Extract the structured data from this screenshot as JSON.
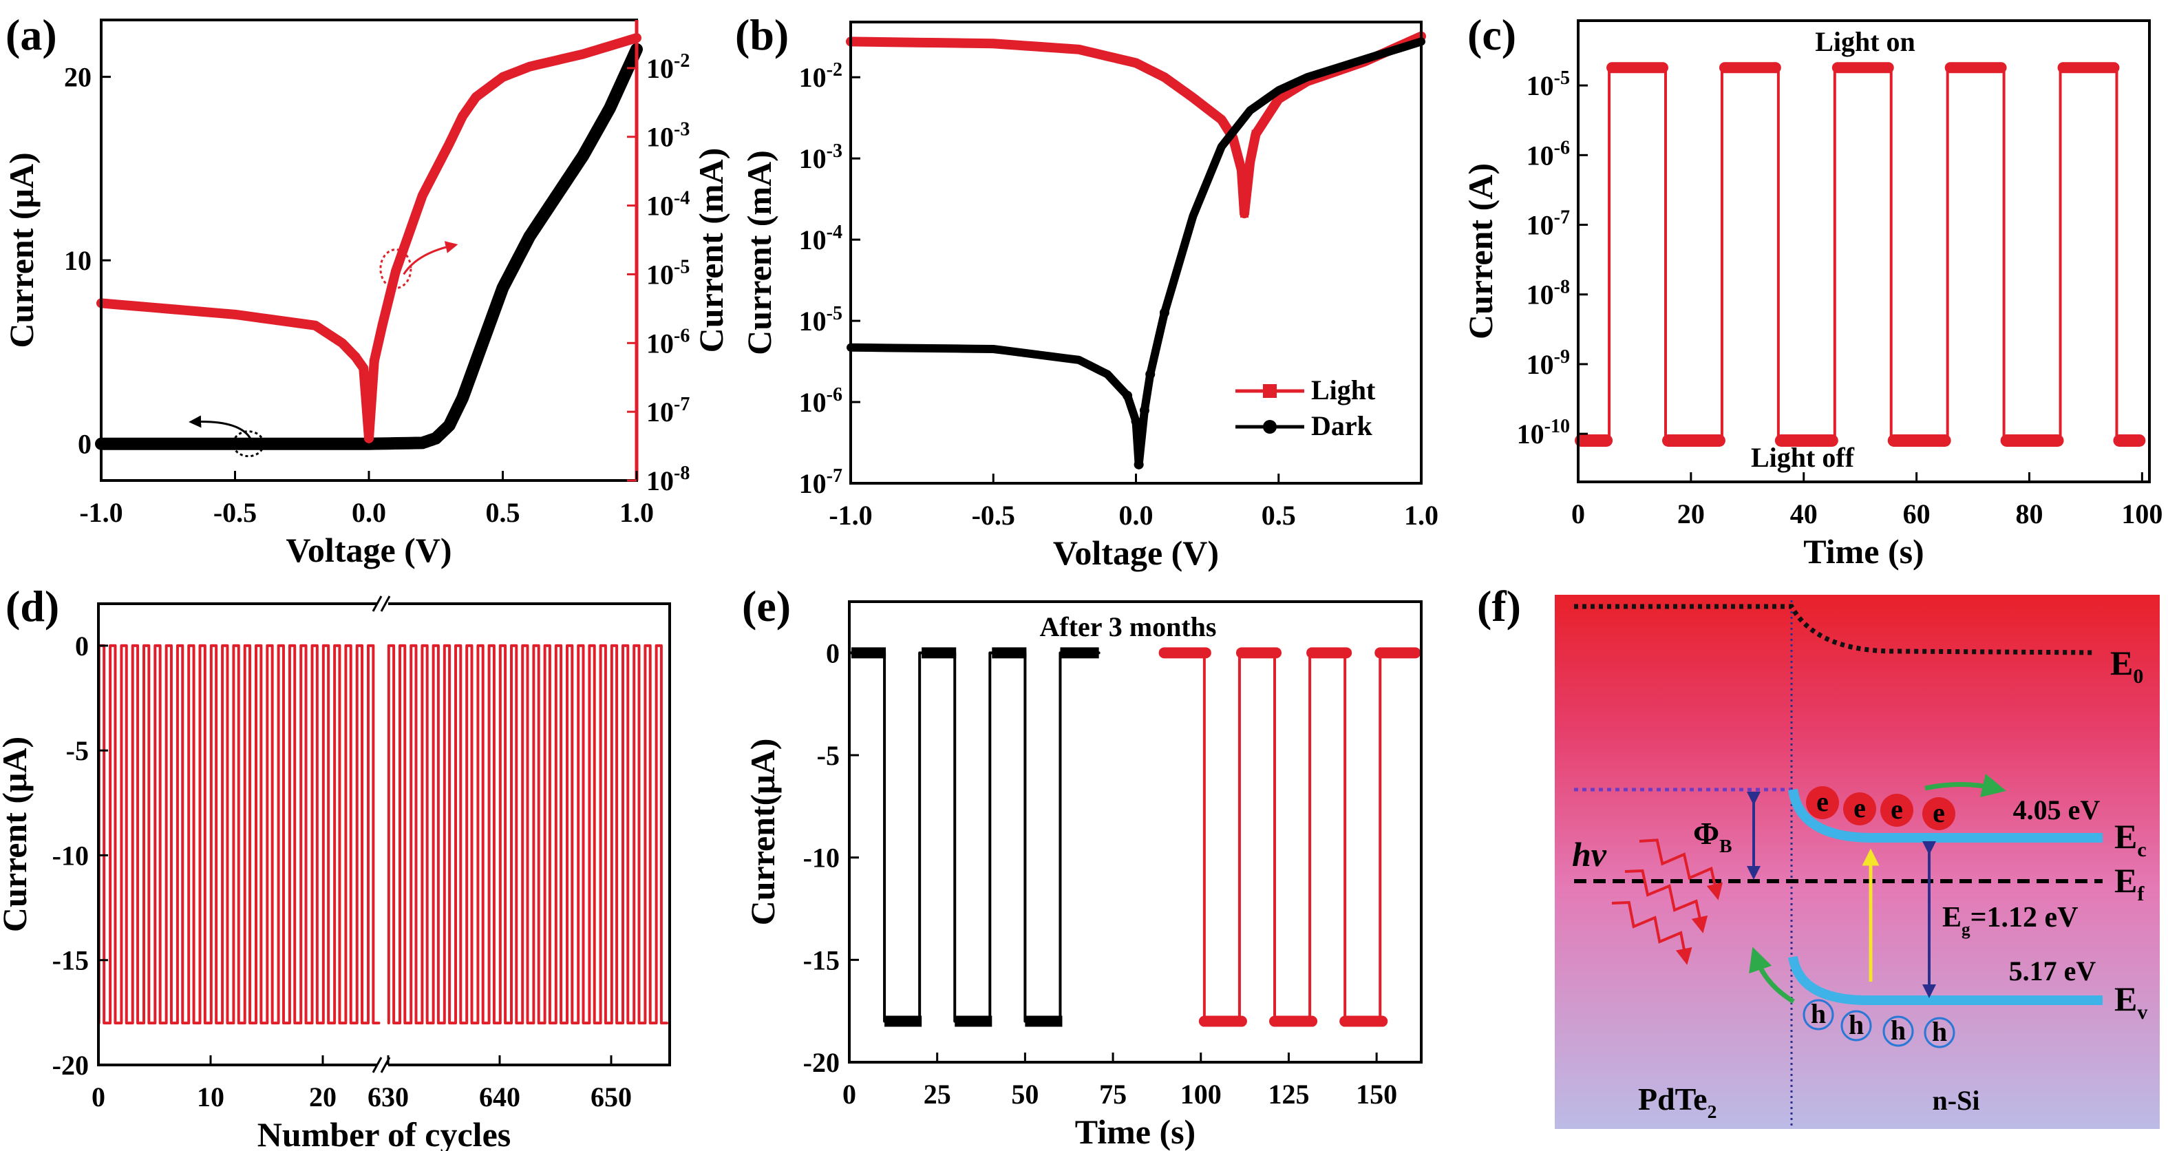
{
  "colors": {
    "light": "#e11f2b",
    "dark": "#000000",
    "ev_band": "#3fb3e8",
    "electron": "#e11f2b",
    "arrow_green": "#2eaa4a",
    "arrow_yellow": "#f4e42a",
    "arrow_navy": "#2a2f8e"
  },
  "panel_labels": [
    "(a)",
    "(b)",
    "(c)",
    "(d)",
    "(e)",
    "(f)"
  ],
  "chart_data": [
    {
      "id": "a",
      "type": "line",
      "xlabel": "Voltage (V)",
      "ylabel": "Current (μA)",
      "ylabel_right": "Current (mA)",
      "xlim": [
        -1.0,
        1.0
      ],
      "ylim": [
        -2,
        23.1
      ],
      "ylim_right_log10": [
        -8,
        -1.3
      ],
      "y_right_scale": "log",
      "xticks": [
        -1.0,
        -0.5,
        0.0,
        0.5,
        1.0
      ],
      "xtick_labels": [
        "-1.0",
        "-0.5",
        "0.0",
        "0.5",
        "1.0"
      ],
      "yticks": [
        0,
        10,
        20
      ],
      "ytick_labels": [
        "0",
        "10",
        "20"
      ],
      "yticks_right": [
        1e-08,
        1e-07,
        1e-06,
        1e-05,
        0.0001,
        0.001,
        0.01
      ],
      "ytick_right_labels": [
        "10^-8",
        "10^-7",
        "10^-6",
        "10^-5",
        "10^-4",
        "10^-3",
        "10^-2"
      ],
      "grid": false,
      "series": [
        {
          "axis": "left",
          "color": "#000000",
          "x": [
            -1.0,
            -0.5,
            0.0,
            0.2,
            0.25,
            0.3,
            0.35,
            0.4,
            0.45,
            0.5,
            0.6,
            0.7,
            0.8,
            0.9,
            1.0
          ],
          "y": [
            0,
            0,
            0,
            0.05,
            0.3,
            1.0,
            2.5,
            4.5,
            6.5,
            8.5,
            11.3,
            13.5,
            15.7,
            18.3,
            21.5
          ]
        },
        {
          "axis": "right",
          "color": "#e11f2b",
          "x": [
            -1.0,
            -0.5,
            -0.2,
            -0.1,
            -0.05,
            -0.02,
            0.0,
            0.02,
            0.05,
            0.1,
            0.2,
            0.3,
            0.35,
            0.4,
            0.5,
            0.6,
            0.8,
            1.0
          ],
          "y": [
            3.8e-06,
            2.6e-06,
            1.8e-06,
            1e-06,
            6.3e-07,
            4.3e-07,
            4.1e-08,
            5.5e-07,
            1.8e-06,
            1.1e-05,
            0.00014,
            0.00079,
            0.002,
            0.0038,
            0.0074,
            0.0105,
            0.016,
            0.0275
          ]
        }
      ]
    },
    {
      "id": "b",
      "type": "line",
      "xlabel": "Voltage (V)",
      "ylabel": "Current (mA)",
      "y_scale": "log",
      "xlim": [
        -1.0,
        1.0
      ],
      "ylim_log10": [
        -7,
        -1.32
      ],
      "xticks": [
        -1.0,
        -0.5,
        0.0,
        0.5,
        1.0
      ],
      "xtick_labels": [
        "-1.0",
        "-0.5",
        "0.0",
        "0.5",
        "1.0"
      ],
      "yticks": [
        1e-07,
        1e-06,
        1e-05,
        0.0001,
        0.001,
        0.01
      ],
      "ytick_labels": [
        "10^-7",
        "10^-6",
        "10^-5",
        "10^-4",
        "10^-3",
        "10^-2"
      ],
      "legend_position": "bottom-right",
      "series": [
        {
          "name": "Light",
          "color": "#e11f2b",
          "marker": "square",
          "x": [
            -1.0,
            -0.5,
            -0.2,
            0.0,
            0.1,
            0.2,
            0.3,
            0.34,
            0.37,
            0.38,
            0.4,
            0.42,
            0.5,
            0.6,
            0.8,
            1.0
          ],
          "y": [
            0.0275,
            0.026,
            0.022,
            0.015,
            0.01,
            0.0056,
            0.003,
            0.0018,
            0.00072,
            0.00021,
            0.00091,
            0.002,
            0.0054,
            0.0089,
            0.0155,
            0.032
          ]
        },
        {
          "name": "Dark",
          "color": "#000000",
          "marker": "circle",
          "x": [
            -1.0,
            -0.5,
            -0.2,
            -0.1,
            -0.03,
            0.0,
            0.01,
            0.03,
            0.05,
            0.1,
            0.2,
            0.3,
            0.4,
            0.5,
            0.6,
            0.8,
            1.0
          ],
          "y": [
            4.7e-06,
            4.5e-06,
            3.3e-06,
            2.2e-06,
            1.2e-06,
            5.8e-07,
            1.7e-07,
            7.9e-07,
            2.2e-06,
            1.26e-05,
            0.000195,
            0.0014,
            0.0039,
            0.0069,
            0.01,
            0.0166,
            0.0275
          ]
        }
      ]
    },
    {
      "id": "c",
      "type": "line",
      "xlabel": "Time (s)",
      "ylabel": "Current (A)",
      "y_scale": "log",
      "xlim": [
        0,
        101.3
      ],
      "ylim_log10": [
        -10.69,
        -4.07
      ],
      "xticks": [
        0,
        20,
        40,
        60,
        80,
        100
      ],
      "xtick_labels": [
        "0",
        "20",
        "40",
        "60",
        "80",
        "100"
      ],
      "yticks": [
        1e-10,
        1e-09,
        1e-08,
        1e-07,
        1e-06,
        1e-05
      ],
      "ytick_labels": [
        "10^-10",
        "10^-9",
        "10^-8",
        "10^-7",
        "10^-6",
        "10^-5"
      ],
      "annotations": [
        "Light on",
        "Light off"
      ],
      "series": [
        {
          "color": "#e11f2b",
          "x_start": 0,
          "x_end": 100,
          "on_current": 1.8e-05,
          "off_current": 8e-11,
          "on_intervals": [
            [
              5.5,
              15.5
            ],
            [
              25.5,
              35.5
            ],
            [
              45.5,
              55.5
            ],
            [
              65.5,
              75.5
            ],
            [
              85.5,
              95.5
            ]
          ]
        }
      ]
    },
    {
      "id": "d",
      "type": "line",
      "xlabel": "Number of cycles",
      "ylabel": "Current (μA)",
      "ylim": [
        -20,
        2
      ],
      "x_broken": true,
      "x_segments": [
        [
          0,
          25.2
        ],
        [
          629.5,
          655.3
        ]
      ],
      "xticks": [
        0,
        10,
        20,
        630,
        640,
        650
      ],
      "xtick_labels": [
        "0",
        "10",
        "20",
        "630",
        "640",
        "650"
      ],
      "yticks": [
        0,
        -5,
        -10,
        -15,
        -20
      ],
      "ytick_labels": [
        "0",
        "-5",
        "-10",
        "-15",
        "-20"
      ],
      "series": [
        {
          "color": "#e11f2b",
          "high": 0,
          "low": -18,
          "cycle_ranges": [
            [
              0,
              24
            ],
            [
              630,
              654
            ]
          ]
        }
      ]
    },
    {
      "id": "e",
      "type": "line",
      "xlabel": "Time (s)",
      "ylabel": "Current(μA)",
      "xlim": [
        0,
        162.7
      ],
      "ylim": [
        -20,
        2.5
      ],
      "xticks": [
        0,
        25,
        50,
        75,
        100,
        125,
        150
      ],
      "xtick_labels": [
        "0",
        "25",
        "50",
        "75",
        "100",
        "125",
        "150"
      ],
      "yticks": [
        0,
        -5,
        -10,
        -15,
        -20
      ],
      "ytick_labels": [
        "0",
        "-5",
        "-10",
        "-15",
        "-20"
      ],
      "annotations": [
        "After 3 months"
      ],
      "series": [
        {
          "color": "#000000",
          "high": 0,
          "low": -18,
          "span": [
            0,
            71
          ],
          "low_intervals": [
            [
              10,
              20
            ],
            [
              30,
              40
            ],
            [
              50,
              60
            ]
          ]
        },
        {
          "color": "#e11f2b",
          "high": 0,
          "low": -18,
          "span": [
            89,
            161
          ],
          "low_intervals": [
            [
              101,
              111
            ],
            [
              121,
              131
            ],
            [
              141,
              151
            ]
          ]
        }
      ]
    }
  ],
  "band_diagram": {
    "levels": {
      "e0": "E0",
      "ec": "Ec",
      "ef": "Ef",
      "ev": "Ev"
    },
    "level_main": "E",
    "level_subs": {
      "e0": "0",
      "ec": "c",
      "ef": "f",
      "ev": "v"
    },
    "barrier": {
      "symbol": "Φ",
      "sub": "B"
    },
    "photon": "hv",
    "ec_energy": "4.05 eV",
    "ev_energy": "5.17 eV",
    "gap": {
      "main": "E",
      "sub": "g",
      "value": "=1.12 eV"
    },
    "electron": "e",
    "hole": "h",
    "left_material": {
      "main": "PdTe",
      "sub": "2"
    },
    "right_material": "n-Si"
  }
}
